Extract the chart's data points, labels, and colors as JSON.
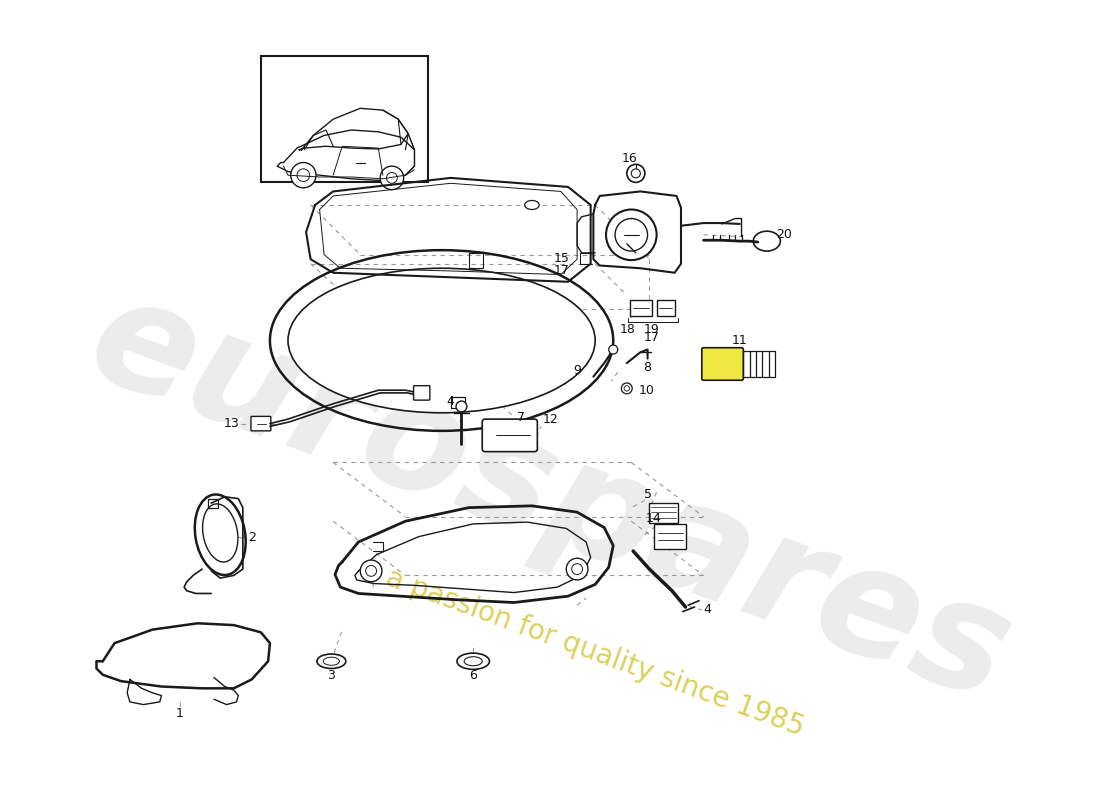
{
  "background_color": "#ffffff",
  "line_color": "#1a1a1a",
  "watermark_text1": "eurospares",
  "watermark_text2": "a passion for quality since 1985",
  "watermark_color1": "#d0d0d0",
  "watermark_color2": "#d4c840",
  "figsize": [
    11.0,
    8.0
  ],
  "dpi": 100
}
